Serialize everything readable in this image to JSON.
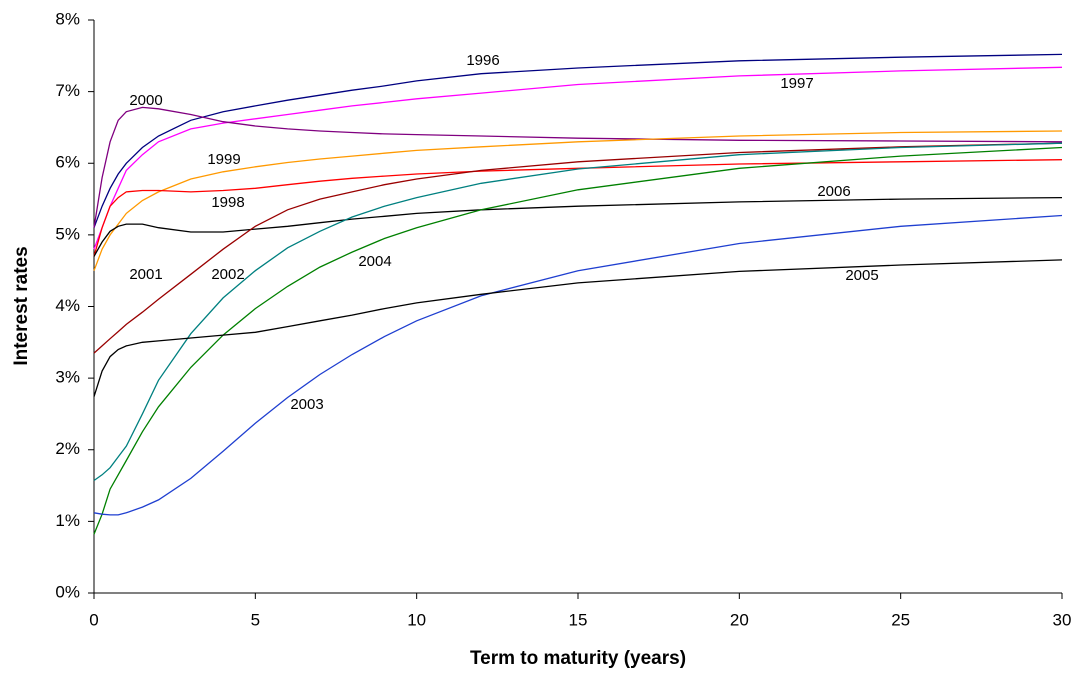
{
  "chart_data": {
    "type": "line",
    "x_label": "Term to maturity (years)",
    "y_label": "Interest rates",
    "x": [
      0,
      0.25,
      0.5,
      0.75,
      1,
      1.5,
      2,
      3,
      4,
      5,
      6,
      7,
      8,
      9,
      10,
      12,
      15,
      20,
      25,
      30
    ],
    "xlim": [
      0,
      30
    ],
    "xticks": [
      0,
      5,
      10,
      15,
      20,
      25,
      30
    ],
    "ylim": [
      0,
      8
    ],
    "yticks": [
      {
        "value": 0,
        "label": "0%"
      },
      {
        "value": 1,
        "label": "1%"
      },
      {
        "value": 2,
        "label": "2%"
      },
      {
        "value": 3,
        "label": "3%"
      },
      {
        "value": 4,
        "label": "4%"
      },
      {
        "value": 5,
        "label": "5%"
      },
      {
        "value": 6,
        "label": "6%"
      },
      {
        "value": 7,
        "label": "7%"
      },
      {
        "value": 8,
        "label": "8%"
      }
    ],
    "grid": false,
    "series": [
      {
        "name": "1996",
        "color": "#000080",
        "values": [
          5.1,
          5.4,
          5.65,
          5.85,
          6.0,
          6.22,
          6.38,
          6.6,
          6.72,
          6.8,
          6.88,
          6.95,
          7.02,
          7.08,
          7.15,
          7.25,
          7.33,
          7.43,
          7.48,
          7.52
        ]
      },
      {
        "name": "1997",
        "color": "#ff00ff",
        "values": [
          4.8,
          5.1,
          5.4,
          5.65,
          5.9,
          6.12,
          6.3,
          6.48,
          6.56,
          6.62,
          6.68,
          6.74,
          6.8,
          6.85,
          6.9,
          6.98,
          7.1,
          7.22,
          7.29,
          7.34
        ]
      },
      {
        "name": "2000",
        "color": "#800080",
        "values": [
          5.1,
          5.8,
          6.3,
          6.6,
          6.72,
          6.78,
          6.76,
          6.68,
          6.58,
          6.52,
          6.48,
          6.45,
          6.43,
          6.41,
          6.4,
          6.38,
          6.35,
          6.32,
          6.31,
          6.3
        ]
      },
      {
        "name": "1999",
        "color": "#ff9900",
        "values": [
          4.5,
          4.8,
          5.0,
          5.15,
          5.3,
          5.48,
          5.6,
          5.78,
          5.88,
          5.95,
          6.01,
          6.06,
          6.1,
          6.14,
          6.18,
          6.23,
          6.3,
          6.38,
          6.43,
          6.45
        ]
      },
      {
        "name": "1998",
        "color": "#ff0000",
        "values": [
          4.7,
          5.1,
          5.4,
          5.52,
          5.6,
          5.62,
          5.62,
          5.6,
          5.62,
          5.65,
          5.7,
          5.75,
          5.79,
          5.82,
          5.85,
          5.89,
          5.93,
          5.99,
          6.02,
          6.05
        ]
      },
      {
        "name": "2006",
        "color": "#000000",
        "values": [
          4.7,
          4.9,
          5.05,
          5.12,
          5.15,
          5.15,
          5.1,
          5.04,
          5.04,
          5.08,
          5.12,
          5.17,
          5.22,
          5.26,
          5.3,
          5.35,
          5.4,
          5.46,
          5.5,
          5.52
        ]
      },
      {
        "name": "2001",
        "color": "#990000",
        "values": [
          3.35,
          3.45,
          3.55,
          3.65,
          3.75,
          3.92,
          4.1,
          4.45,
          4.8,
          5.12,
          5.35,
          5.5,
          5.6,
          5.7,
          5.78,
          5.9,
          6.02,
          6.15,
          6.23,
          6.28
        ]
      },
      {
        "name": "2002",
        "color": "#008080",
        "values": [
          1.57,
          1.65,
          1.75,
          1.9,
          2.05,
          2.5,
          2.97,
          3.62,
          4.12,
          4.5,
          4.82,
          5.05,
          5.25,
          5.4,
          5.52,
          5.72,
          5.92,
          6.12,
          6.22,
          6.28
        ]
      },
      {
        "name": "2004",
        "color": "#008000",
        "values": [
          0.82,
          1.1,
          1.45,
          1.65,
          1.85,
          2.25,
          2.6,
          3.15,
          3.6,
          3.97,
          4.28,
          4.55,
          4.76,
          4.95,
          5.1,
          5.35,
          5.63,
          5.93,
          6.1,
          6.22
        ]
      },
      {
        "name": "2003",
        "color": "#1f3fd0",
        "values": [
          1.12,
          1.1,
          1.09,
          1.09,
          1.12,
          1.2,
          1.3,
          1.6,
          1.98,
          2.37,
          2.73,
          3.05,
          3.33,
          3.58,
          3.8,
          4.15,
          4.5,
          4.88,
          5.12,
          5.27
        ]
      },
      {
        "name": "2005",
        "color": "#000000",
        "values": [
          2.74,
          3.1,
          3.3,
          3.4,
          3.45,
          3.5,
          3.52,
          3.56,
          3.6,
          3.64,
          3.72,
          3.8,
          3.88,
          3.97,
          4.05,
          4.17,
          4.33,
          4.49,
          4.58,
          4.65
        ]
      }
    ]
  }
}
